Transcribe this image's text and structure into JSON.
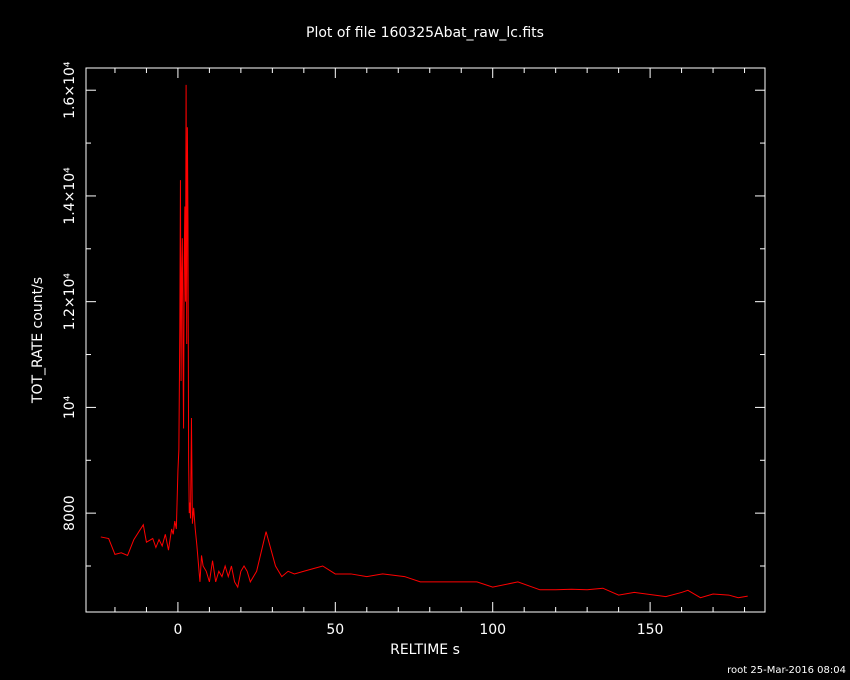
{
  "chart_data": {
    "type": "line",
    "title": "Plot of file 160325Abat_raw_lc.fits",
    "x_label": "RELTIME  s",
    "y_label": "TOT_RATE  count/s",
    "footer": "root 25-Mar-2016 08:04",
    "color": "#ff0000",
    "xlim": [
      -29.2,
      186.5
    ],
    "ylim": [
      6130,
      16420
    ],
    "xticks": [
      0,
      50,
      100,
      150
    ],
    "xminorticks": [
      -20,
      -10,
      10,
      20,
      30,
      40,
      60,
      70,
      80,
      90,
      110,
      120,
      130,
      140,
      160,
      170,
      180
    ],
    "yticks": [
      8000,
      {
        "value": 10000,
        "label": "10⁴"
      },
      {
        "value": 12000,
        "label": "1.2×10⁴"
      },
      {
        "value": 14000,
        "label": "1.4×10⁴"
      },
      {
        "value": 16000,
        "label": "1.6×10⁴"
      }
    ],
    "yminorticks": [
      7000,
      9000,
      11000,
      13000,
      15000
    ],
    "x": [
      -24.5,
      -22,
      -20,
      -18,
      -16,
      -14,
      -11,
      -10,
      -8,
      -7,
      -6,
      -5,
      -4,
      -3,
      -2,
      -1.5,
      -1,
      -0.5,
      0,
      0.3,
      0.6,
      0.8,
      1.0,
      1.2,
      1.4,
      1.6,
      1.8,
      2.0,
      2.2,
      2.4,
      2.6,
      2.8,
      3.0,
      3.2,
      3.4,
      3.6,
      3.8,
      4.0,
      4.3,
      4.6,
      5,
      5.5,
      6,
      7,
      7.5,
      8,
      9,
      10,
      11,
      12,
      13,
      14,
      15,
      16,
      17,
      18,
      19,
      20,
      21,
      22,
      23,
      25,
      28,
      31,
      33,
      35,
      37,
      40,
      43,
      46,
      50,
      55,
      60,
      65,
      72,
      77,
      85,
      95,
      100,
      108,
      115,
      120,
      125,
      130,
      135,
      140,
      145,
      155,
      160,
      162,
      166,
      170,
      175,
      178,
      181
    ],
    "values": [
      7550,
      7520,
      7220,
      7250,
      7200,
      7500,
      7780,
      7450,
      7520,
      7350,
      7500,
      7380,
      7600,
      7300,
      7700,
      7600,
      7850,
      7700,
      8800,
      9200,
      11500,
      14300,
      10500,
      12500,
      13200,
      11000,
      9600,
      12800,
      13800,
      12000,
      16100,
      11200,
      15300,
      13500,
      9000,
      8000,
      8200,
      7900,
      9800,
      7800,
      8100,
      7700,
      7400,
      6700,
      7200,
      7000,
      6900,
      6700,
      7100,
      6700,
      6900,
      6800,
      7000,
      6800,
      7000,
      6700,
      6600,
      6900,
      7000,
      6900,
      6700,
      6900,
      7650,
      7000,
      6800,
      6900,
      6850,
      6900,
      6950,
      7000,
      6850,
      6850,
      6800,
      6850,
      6800,
      6700,
      6700,
      6700,
      6600,
      6700,
      6550,
      6550,
      6560,
      6550,
      6580,
      6450,
      6500,
      6420,
      6500,
      6540,
      6400,
      6470,
      6450,
      6400,
      6430
    ]
  }
}
